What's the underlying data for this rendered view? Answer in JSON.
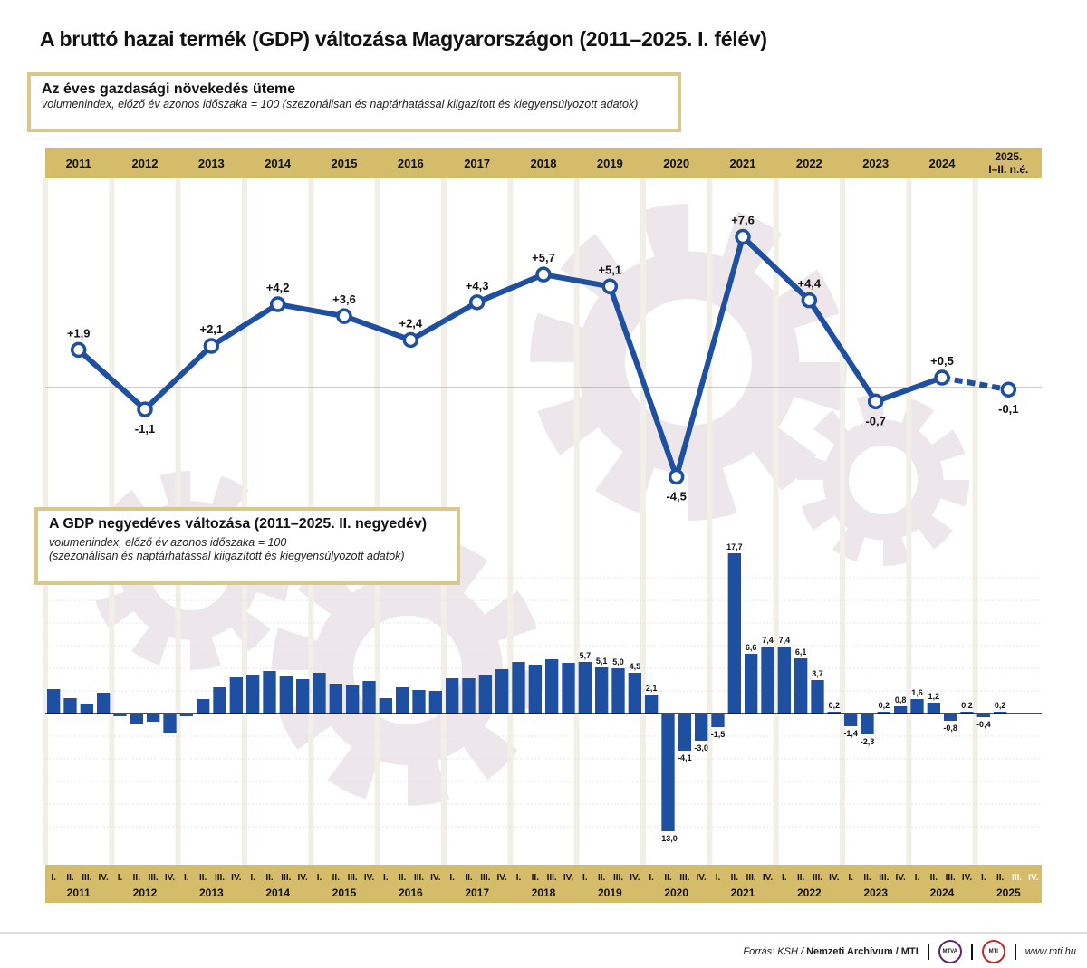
{
  "title": "A bruttó hazai termék (GDP) változása Magyarországon (2011–2025. I. félév)",
  "colors": {
    "bar": "#1f4fa0",
    "line": "#1f4fa0",
    "band": "#d4bc6a",
    "gear": "#ede7eb",
    "box_border": "#d9c88a"
  },
  "chart_data": [
    {
      "type": "line",
      "title": "Az éves gazdasági növekedés üteme",
      "subtitle": "volumenindex, előző év azonos időszaka = 100 (szezonálisan és naptárhatással kiigazított és kiegyensúlyozott adatok)",
      "categories": [
        "2011",
        "2012",
        "2013",
        "2014",
        "2015",
        "2016",
        "2017",
        "2018",
        "2019",
        "2020",
        "2021",
        "2022",
        "2023",
        "2024",
        "2025."
      ],
      "category_sublabel_last": "I–II. n.é.",
      "values": [
        1.9,
        -1.1,
        2.1,
        4.2,
        3.6,
        2.4,
        4.3,
        5.7,
        5.1,
        -4.5,
        7.6,
        4.4,
        -0.7,
        0.5,
        -0.1
      ],
      "labels": [
        "+1,9",
        "-1,1",
        "+2,1",
        "+4,2",
        "+3,6",
        "+2,4",
        "+4,3",
        "+5,7",
        "+5,1",
        "-4,5",
        "+7,6",
        "+4,4",
        "-0,7",
        "+0,5",
        "-0,1"
      ],
      "dashed_last_segment": true,
      "ylim": [
        -6,
        9
      ]
    },
    {
      "type": "bar",
      "title": "A GDP negyedéves változása (2011–2025. II. negyedév)",
      "subtitle_lines": [
        "volumenindex, előző év azonos időszaka = 100",
        "(szezonálisan és naptárhatással kiigazított és kiegyensúlyozott adatok)"
      ],
      "years": [
        "2011",
        "2012",
        "2013",
        "2014",
        "2015",
        "2016",
        "2017",
        "2018",
        "2019",
        "2020",
        "2021",
        "2022",
        "2023",
        "2024",
        "2025"
      ],
      "quarters": [
        "I.",
        "II.",
        "III.",
        "IV."
      ],
      "values": [
        2.7,
        1.7,
        1.0,
        2.3,
        -0.3,
        -1.1,
        -0.9,
        -2.2,
        -0.3,
        1.6,
        2.9,
        4.0,
        4.3,
        4.7,
        4.1,
        3.8,
        4.5,
        3.3,
        3.1,
        3.6,
        1.7,
        2.9,
        2.6,
        2.5,
        3.9,
        3.9,
        4.3,
        4.9,
        5.7,
        5.4,
        6.0,
        5.6,
        5.7,
        5.1,
        5.0,
        4.5,
        2.1,
        -13.0,
        -4.1,
        -3.0,
        -1.5,
        17.7,
        6.6,
        7.4,
        7.4,
        6.1,
        3.7,
        0.2,
        -1.4,
        -2.3,
        0.2,
        0.8,
        1.6,
        1.2,
        -0.8,
        0.2,
        -0.4,
        0.2
      ],
      "labels": [
        null,
        null,
        null,
        null,
        null,
        null,
        null,
        null,
        null,
        null,
        null,
        null,
        null,
        null,
        null,
        null,
        null,
        null,
        null,
        null,
        null,
        null,
        null,
        null,
        null,
        null,
        null,
        null,
        null,
        null,
        null,
        null,
        "5,7",
        "5,1",
        "5,0",
        "4,5",
        "2,1",
        "-13,0",
        "-4,1",
        "-3,0",
        "-1,5",
        "17,7",
        "6,6",
        "7,4",
        "7,4",
        "6,1",
        "3,7",
        "0,2",
        "-1,4",
        "-2,3",
        "0,2",
        "0,8",
        "1,6",
        "1,2",
        "-0,8",
        "0,2",
        "-0,4",
        "0,2"
      ],
      "ylim": [
        -14,
        19
      ]
    }
  ],
  "footer": {
    "source_prefix": "Forrás: KSH / ",
    "source_bold": "Nemzeti Archívum / MTI",
    "logo1": "MTVA",
    "logo2": "MTI",
    "url": "www.mti.hu"
  }
}
